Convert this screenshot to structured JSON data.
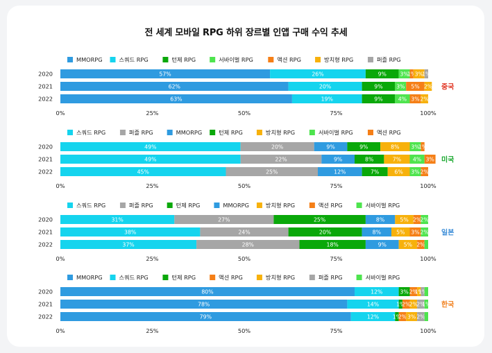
{
  "title": "전 세계 모바일 RPG 하위 장르별 인앱 구매 수익 추세",
  "colors": {
    "MMORPG": "#2f9be0",
    "스쿼드 RPG": "#15d4ee",
    "턴제 RPG": "#0aa80a",
    "서바이벌 RPG": "#4ee44e",
    "액션 RPG": "#f57f17",
    "방치형 RPG": "#f7b10c",
    "퍼즐 RPG": "#a6a6a6"
  },
  "region_colors": {
    "중국": "#e0311f",
    "미국": "#17a82c",
    "일본": "#3d8ed8",
    "한국": "#f07f1c"
  },
  "chart_data": [
    {
      "type": "bar",
      "orientation": "horizontal",
      "stacked": "percent",
      "region": "중국",
      "legend": [
        "MMORPG",
        "스쿼드 RPG",
        "턴제 RPG",
        "서바이벌 RPG",
        "액션 RPG",
        "방치형 RPG",
        "퍼즐 RPG"
      ],
      "categories": [
        "2020",
        "2021",
        "2022"
      ],
      "series": [
        {
          "name": "MMORPG",
          "values": [
            57,
            62,
            63
          ]
        },
        {
          "name": "스쿼드 RPG",
          "values": [
            26,
            20,
            19
          ]
        },
        {
          "name": "턴제 RPG",
          "values": [
            9,
            9,
            9
          ]
        },
        {
          "name": "서바이벌 RPG",
          "values": [
            3,
            3,
            4
          ]
        },
        {
          "name": "액션 RPG",
          "values": [
            1,
            5,
            3
          ]
        },
        {
          "name": "방치형 RPG",
          "values": [
            3,
            2,
            2
          ]
        },
        {
          "name": "퍼즐 RPG",
          "values": [
            1,
            0,
            0
          ]
        }
      ],
      "labels": [
        [
          "57%",
          "26%",
          "9%",
          "3%",
          "1%",
          "3%",
          "1%"
        ],
        [
          "62%",
          "20%",
          "9%",
          "3%",
          "5%",
          "2%",
          ""
        ],
        [
          "63%",
          "19%",
          "9%",
          "4%",
          "3%",
          "2%",
          ""
        ]
      ],
      "xticks": [
        "0%",
        "25%",
        "50%",
        "75%",
        "100%"
      ],
      "xlim": [
        0,
        100
      ]
    },
    {
      "type": "bar",
      "orientation": "horizontal",
      "stacked": "percent",
      "region": "미국",
      "legend": [
        "스쿼드 RPG",
        "퍼즐 RPG",
        "MMORPG",
        "턴제 RPG",
        "방치형 RPG",
        "서바이벌 RPG",
        "액션 RPG"
      ],
      "categories": [
        "2020",
        "2021",
        "2022"
      ],
      "series": [
        {
          "name": "스쿼드 RPG",
          "values": [
            49,
            49,
            45
          ]
        },
        {
          "name": "퍼즐 RPG",
          "values": [
            20,
            22,
            25
          ]
        },
        {
          "name": "MMORPG",
          "values": [
            9,
            9,
            12
          ]
        },
        {
          "name": "턴제 RPG",
          "values": [
            9,
            8,
            7
          ]
        },
        {
          "name": "방치형 RPG",
          "values": [
            8,
            7,
            6
          ]
        },
        {
          "name": "서바이벌 RPG",
          "values": [
            3,
            4,
            3
          ]
        },
        {
          "name": "액션 RPG",
          "values": [
            1,
            3,
            2
          ]
        }
      ],
      "labels": [
        [
          "49%",
          "20%",
          "9%",
          "9%",
          "8%",
          "3%",
          "1%"
        ],
        [
          "49%",
          "22%",
          "9%",
          "8%",
          "7%",
          "4%",
          "3%"
        ],
        [
          "45%",
          "25%",
          "12%",
          "7%",
          "6%",
          "3%",
          "2%"
        ]
      ],
      "xticks": [
        "0%",
        "25%",
        "50%",
        "75%",
        "100%"
      ],
      "xlim": [
        0,
        100
      ]
    },
    {
      "type": "bar",
      "orientation": "horizontal",
      "stacked": "percent",
      "region": "일본",
      "legend": [
        "스쿼드 RPG",
        "퍼즐 RPG",
        "턴제 RPG",
        "MMORPG",
        "방치형 RPG",
        "액션 RPG",
        "서바이벌 RPG"
      ],
      "categories": [
        "2020",
        "2021",
        "2022"
      ],
      "series": [
        {
          "name": "스쿼드 RPG",
          "values": [
            31,
            38,
            37
          ]
        },
        {
          "name": "퍼즐 RPG",
          "values": [
            27,
            24,
            28
          ]
        },
        {
          "name": "턴제 RPG",
          "values": [
            25,
            20,
            18
          ]
        },
        {
          "name": "MMORPG",
          "values": [
            8,
            8,
            9
          ]
        },
        {
          "name": "방치형 RPG",
          "values": [
            5,
            5,
            5
          ]
        },
        {
          "name": "액션 RPG",
          "values": [
            2,
            3,
            2
          ]
        },
        {
          "name": "서바이벌 RPG",
          "values": [
            2,
            2,
            1
          ]
        }
      ],
      "labels": [
        [
          "31%",
          "27%",
          "25%",
          "8%",
          "5%",
          "2%",
          "2%"
        ],
        [
          "38%",
          "24%",
          "20%",
          "8%",
          "5%",
          "3%",
          "2%"
        ],
        [
          "37%",
          "28%",
          "18%",
          "9%",
          "5%",
          "2%",
          ""
        ]
      ],
      "xticks": [
        "0%",
        "25%",
        "50%",
        "75%",
        "100%"
      ],
      "xlim": [
        0,
        100
      ]
    },
    {
      "type": "bar",
      "orientation": "horizontal",
      "stacked": "percent",
      "region": "한국",
      "legend": [
        "MMORPG",
        "스쿼드 RPG",
        "턴제 RPG",
        "액션 RPG",
        "방치형 RPG",
        "퍼즐 RPG",
        "서바이벌 RPG"
      ],
      "categories": [
        "2020",
        "2021",
        "2022"
      ],
      "series": [
        {
          "name": "MMORPG",
          "values": [
            80,
            78,
            79
          ]
        },
        {
          "name": "스쿼드 RPG",
          "values": [
            12,
            14,
            12
          ]
        },
        {
          "name": "턴제 RPG",
          "values": [
            3,
            1,
            1
          ]
        },
        {
          "name": "액션 RPG",
          "values": [
            2,
            2,
            2
          ]
        },
        {
          "name": "방치형 RPG",
          "values": [
            1,
            2,
            3
          ]
        },
        {
          "name": "퍼즐 RPG",
          "values": [
            1,
            2,
            2
          ]
        },
        {
          "name": "서바이벌 RPG",
          "values": [
            1,
            1,
            1
          ]
        }
      ],
      "labels": [
        [
          "80%",
          "12%",
          "3%",
          "2%",
          "1%",
          "1%",
          ""
        ],
        [
          "78%",
          "14%",
          "1%",
          "2%",
          "2%",
          "2%",
          "1%"
        ],
        [
          "79%",
          "12%",
          "1%",
          "2%",
          "3%",
          "2%",
          ""
        ]
      ],
      "xticks": [
        "0%",
        "25%",
        "50%",
        "75%",
        "100%"
      ],
      "xlim": [
        0,
        100
      ]
    }
  ]
}
